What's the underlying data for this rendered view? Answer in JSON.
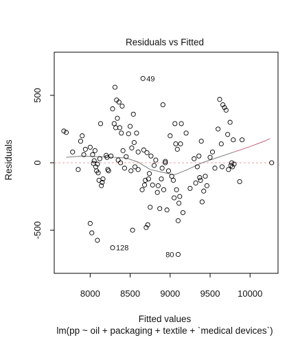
{
  "chart_data": {
    "type": "scatter",
    "title": "Residuals vs Fitted",
    "xlabel": "Fitted values",
    "ylabel": "Residuals",
    "subtitle": "lm(pp ~ oil + packaging + textile + `medical devices`)",
    "xlim": [
      7550,
      10350
    ],
    "ylim": [
      -820,
      820
    ],
    "x_ticks": [
      8000,
      8500,
      9000,
      9500,
      10000
    ],
    "y_ticks": [
      -500,
      0,
      500
    ],
    "grid": false,
    "reference_line": 0,
    "colors": {
      "points": "#000000",
      "smooth": "#7a7a7a",
      "smooth_right": "#c06070",
      "reference": "#e8a0a0",
      "frame": "#000000"
    },
    "outlier_labels": [
      {
        "label": "49",
        "x": 8660,
        "y": 625
      },
      {
        "label": "128",
        "x": 8280,
        "y": -630
      },
      {
        "label": "80",
        "x": 9100,
        "y": -680
      }
    ],
    "smooth": [
      {
        "x": 7700,
        "y": 40
      },
      {
        "x": 7900,
        "y": 50
      },
      {
        "x": 8100,
        "y": 45
      },
      {
        "x": 8300,
        "y": 40
      },
      {
        "x": 8450,
        "y": 35
      },
      {
        "x": 8600,
        "y": 5
      },
      {
        "x": 8750,
        "y": -50
      },
      {
        "x": 8900,
        "y": -70
      },
      {
        "x": 9050,
        "y": -90
      },
      {
        "x": 9200,
        "y": -55
      },
      {
        "x": 9400,
        "y": 0
      },
      {
        "x": 9600,
        "y": 40
      },
      {
        "x": 9800,
        "y": 80
      },
      {
        "x": 10000,
        "y": 120
      },
      {
        "x": 10200,
        "y": 165
      },
      {
        "x": 10250,
        "y": 180
      }
    ],
    "points": [
      {
        "x": 7670,
        "y": 235
      },
      {
        "x": 7700,
        "y": 225
      },
      {
        "x": 7780,
        "y": 80
      },
      {
        "x": 7850,
        "y": -50
      },
      {
        "x": 7880,
        "y": 160
      },
      {
        "x": 7900,
        "y": 200
      },
      {
        "x": 7920,
        "y": 60
      },
      {
        "x": 7940,
        "y": 100
      },
      {
        "x": 8000,
        "y": 115
      },
      {
        "x": 8000,
        "y": -450
      },
      {
        "x": 8020,
        "y": -520
      },
      {
        "x": 8030,
        "y": 60
      },
      {
        "x": 8040,
        "y": -5
      },
      {
        "x": 8050,
        "y": 15
      },
      {
        "x": 8060,
        "y": 90
      },
      {
        "x": 8070,
        "y": -30
      },
      {
        "x": 8080,
        "y": -60
      },
      {
        "x": 8090,
        "y": -10
      },
      {
        "x": 8090,
        "y": -575
      },
      {
        "x": 8100,
        "y": -75
      },
      {
        "x": 8110,
        "y": -130
      },
      {
        "x": 8120,
        "y": 30
      },
      {
        "x": 8130,
        "y": 290
      },
      {
        "x": 8140,
        "y": -170
      },
      {
        "x": 8150,
        "y": -145
      },
      {
        "x": 8160,
        "y": -120
      },
      {
        "x": 8200,
        "y": 55
      },
      {
        "x": 8210,
        "y": 40
      },
      {
        "x": 8220,
        "y": -50
      },
      {
        "x": 8230,
        "y": -60
      },
      {
        "x": 8260,
        "y": 50
      },
      {
        "x": 8280,
        "y": 400
      },
      {
        "x": 8300,
        "y": 290
      },
      {
        "x": 8310,
        "y": 560
      },
      {
        "x": 8320,
        "y": 260
      },
      {
        "x": 8330,
        "y": 465
      },
      {
        "x": 8340,
        "y": 330
      },
      {
        "x": 8350,
        "y": 20
      },
      {
        "x": 8360,
        "y": 450
      },
      {
        "x": 8370,
        "y": 260
      },
      {
        "x": 8380,
        "y": 0
      },
      {
        "x": 8390,
        "y": 220
      },
      {
        "x": 8400,
        "y": 420
      },
      {
        "x": 8410,
        "y": 90
      },
      {
        "x": 8430,
        "y": -40
      },
      {
        "x": 8450,
        "y": 45
      },
      {
        "x": 8480,
        "y": 215
      },
      {
        "x": 8500,
        "y": 270
      },
      {
        "x": 8510,
        "y": -60
      },
      {
        "x": 8520,
        "y": 110
      },
      {
        "x": 8530,
        "y": -500
      },
      {
        "x": 8540,
        "y": 360
      },
      {
        "x": 8550,
        "y": 150
      },
      {
        "x": 8560,
        "y": -30
      },
      {
        "x": 8580,
        "y": 220
      },
      {
        "x": 8600,
        "y": 80
      },
      {
        "x": 8600,
        "y": -50
      },
      {
        "x": 8650,
        "y": -200
      },
      {
        "x": 8670,
        "y": 95
      },
      {
        "x": 8680,
        "y": -165
      },
      {
        "x": 8690,
        "y": -130
      },
      {
        "x": 8700,
        "y": -480
      },
      {
        "x": 8710,
        "y": 75
      },
      {
        "x": 8720,
        "y": -460
      },
      {
        "x": 8730,
        "y": -120
      },
      {
        "x": 8740,
        "y": -80
      },
      {
        "x": 8750,
        "y": -330
      },
      {
        "x": 8760,
        "y": 50
      },
      {
        "x": 8780,
        "y": -165
      },
      {
        "x": 8800,
        "y": -20
      },
      {
        "x": 8820,
        "y": 20
      },
      {
        "x": 8840,
        "y": -220
      },
      {
        "x": 8850,
        "y": -170
      },
      {
        "x": 8870,
        "y": -340
      },
      {
        "x": 8890,
        "y": -120
      },
      {
        "x": 8900,
        "y": -40
      },
      {
        "x": 8910,
        "y": 430
      },
      {
        "x": 8920,
        "y": -200
      },
      {
        "x": 8940,
        "y": 0
      },
      {
        "x": 8940,
        "y": 10
      },
      {
        "x": 8960,
        "y": -350
      },
      {
        "x": 8980,
        "y": -60
      },
      {
        "x": 9000,
        "y": 200
      },
      {
        "x": 9020,
        "y": -100
      },
      {
        "x": 9040,
        "y": -130
      },
      {
        "x": 9050,
        "y": -260
      },
      {
        "x": 9060,
        "y": 290
      },
      {
        "x": 9070,
        "y": 140
      },
      {
        "x": 9080,
        "y": -200
      },
      {
        "x": 9090,
        "y": 100
      },
      {
        "x": 9100,
        "y": -430
      },
      {
        "x": 9110,
        "y": -300
      },
      {
        "x": 9120,
        "y": -250
      },
      {
        "x": 9130,
        "y": 140
      },
      {
        "x": 9140,
        "y": 290
      },
      {
        "x": 9160,
        "y": -370
      },
      {
        "x": 9200,
        "y": 220
      },
      {
        "x": 9250,
        "y": -190
      },
      {
        "x": 9300,
        "y": 30
      },
      {
        "x": 9320,
        "y": -150
      },
      {
        "x": 9340,
        "y": -30
      },
      {
        "x": 9360,
        "y": 50
      },
      {
        "x": 9370,
        "y": -110
      },
      {
        "x": 9380,
        "y": -130
      },
      {
        "x": 9390,
        "y": 160
      },
      {
        "x": 9400,
        "y": -290
      },
      {
        "x": 9420,
        "y": -210
      },
      {
        "x": 9440,
        "y": -100
      },
      {
        "x": 9460,
        "y": -170
      },
      {
        "x": 9500,
        "y": 40
      },
      {
        "x": 9530,
        "y": 80
      },
      {
        "x": 9560,
        "y": -40
      },
      {
        "x": 9600,
        "y": 250
      },
      {
        "x": 9620,
        "y": 470
      },
      {
        "x": 9640,
        "y": 140
      },
      {
        "x": 9650,
        "y": -30
      },
      {
        "x": 9660,
        "y": 430
      },
      {
        "x": 9680,
        "y": 410
      },
      {
        "x": 9700,
        "y": 390
      },
      {
        "x": 9720,
        "y": 210
      },
      {
        "x": 9730,
        "y": -50
      },
      {
        "x": 9750,
        "y": 300
      },
      {
        "x": 9760,
        "y": -20
      },
      {
        "x": 9770,
        "y": 0
      },
      {
        "x": 9780,
        "y": -30
      },
      {
        "x": 9790,
        "y": 170
      },
      {
        "x": 9800,
        "y": -10
      },
      {
        "x": 9870,
        "y": -140
      },
      {
        "x": 9900,
        "y": 170
      },
      {
        "x": 10270,
        "y": 0
      }
    ]
  }
}
